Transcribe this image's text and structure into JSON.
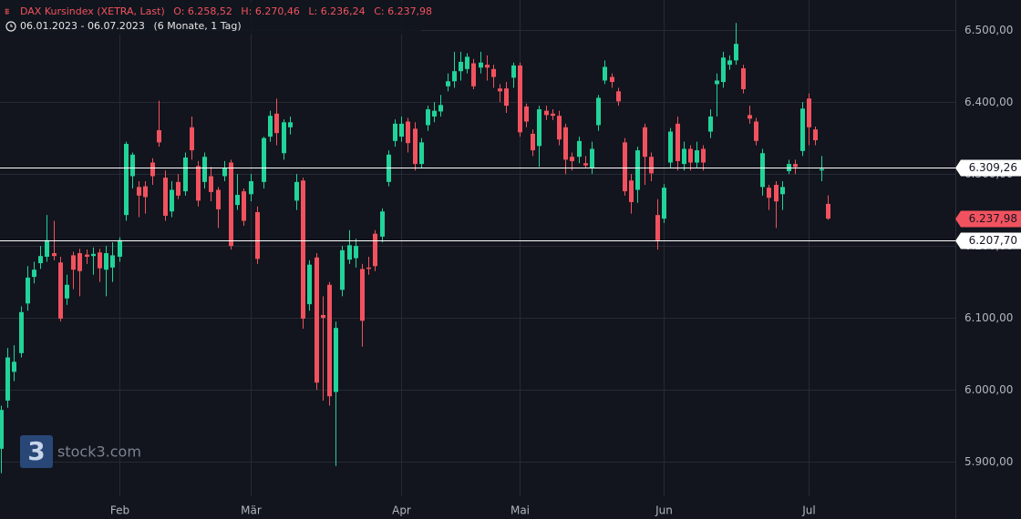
{
  "header": {
    "instrument": "DAX Kursindex (XETRA, Last)",
    "open": "O: 6.258,52",
    "high": "H: 6.270,46",
    "low": "L: 6.236,24",
    "close": "C: 6.237,98",
    "range": "06.01.2023 - 06.07.2023",
    "period": "(6 Monate, 1 Tag)"
  },
  "watermark": {
    "logo": "3",
    "text": "stock3.com"
  },
  "chart_data": {
    "type": "candlestick",
    "up_color": "#22d39a",
    "down_color": "#f2525f",
    "xlim": [
      -0.14,
      145.4
    ],
    "xticks": [
      {
        "value": 18,
        "label": "Feb"
      },
      {
        "value": 38,
        "label": "Mär"
      },
      {
        "value": 61,
        "label": "Apr"
      },
      {
        "value": 79,
        "label": "Mai"
      },
      {
        "value": 101,
        "label": "Jun"
      },
      {
        "value": 123,
        "label": "Jul"
      }
    ],
    "ylim": [
      5852,
      6542
    ],
    "yticks": [
      {
        "value": 5900,
        "label": "5.900,00"
      },
      {
        "value": 6000,
        "label": "6.000,00"
      },
      {
        "value": 6100,
        "label": "6.100,00"
      },
      {
        "value": 6200,
        "label": "6.200,00"
      },
      {
        "value": 6300,
        "label": "6.300,00"
      },
      {
        "value": 6400,
        "label": "6.400,00"
      },
      {
        "value": 6500,
        "label": "6.500,00"
      }
    ],
    "grid": true,
    "hlines": [
      {
        "value": 6309.26,
        "label": "6.309,26"
      },
      {
        "value": 6207.7,
        "label": "6.207,70"
      }
    ],
    "last_price": {
      "value": 6237.98,
      "label": "6.237,98"
    },
    "open": [
      5918,
      5985,
      6025,
      6051,
      6120,
      6157,
      6176,
      6185,
      6190,
      6177,
      6127,
      6187,
      6190,
      6188,
      6186,
      6191,
      6167,
      6170,
      6185,
      6243,
      6297,
      6282,
      6283,
      6316,
      6361,
      6295,
      6248,
      6289,
      6276,
      6365,
      6311,
      6289,
      6297,
      6278,
      6297,
      6316,
      6257,
      6276,
      6272,
      6247,
      6289,
      6352,
      6384,
      6329,
      6365,
      6263,
      6291,
      6119,
      6184,
      6104,
      6146,
      5997,
      6139,
      6181,
      6183,
      6168,
      6170,
      6217,
      6213,
      6289,
      6346,
      6352,
      6373,
      6363,
      6314,
      6368,
      6380,
      6387,
      6422,
      6429,
      6443,
      6446,
      6454,
      6448,
      6452,
      6446,
      6419,
      6419,
      6434,
      6451,
      6394,
      6356,
      6339,
      6388,
      6384,
      6381,
      6365,
      6324,
      6324,
      6315,
      6309,
      6368,
      6430,
      6435,
      6415,
      6344,
      6291,
      6278,
      6365,
      6324,
      6243,
      6238,
      6316,
      6370,
      6314,
      6335,
      6316,
      6335,
      6359,
      6425,
      6428,
      6452,
      6458,
      6447,
      6382,
      6373,
      6282,
      6281,
      6285,
      6272,
      6304,
      6314,
      6332,
      6405,
      6362,
      6305,
      6258.52
    ],
    "high": [
      5978,
      6058,
      6062,
      6116,
      6172,
      6178,
      6200,
      6243,
      6235,
      6185,
      6160,
      6192,
      6196,
      6195,
      6198,
      6196,
      6200,
      6205,
      6212,
      6345,
      6330,
      6290,
      6290,
      6322,
      6402,
      6305,
      6290,
      6300,
      6330,
      6380,
      6318,
      6330,
      6310,
      6282,
      6318,
      6320,
      6300,
      6280,
      6300,
      6255,
      6352,
      6388,
      6405,
      6376,
      6380,
      6300,
      6295,
      6180,
      6190,
      6130,
      6150,
      6095,
      6200,
      6222,
      6210,
      6175,
      6185,
      6222,
      6252,
      6333,
      6376,
      6380,
      6378,
      6372,
      6350,
      6395,
      6400,
      6410,
      6440,
      6470,
      6470,
      6468,
      6460,
      6470,
      6465,
      6452,
      6425,
      6428,
      6455,
      6455,
      6398,
      6362,
      6395,
      6395,
      6390,
      6388,
      6370,
      6330,
      6352,
      6325,
      6345,
      6410,
      6458,
      6440,
      6420,
      6350,
      6300,
      6338,
      6370,
      6330,
      6265,
      6286,
      6364,
      6380,
      6345,
      6340,
      6345,
      6340,
      6390,
      6440,
      6470,
      6465,
      6510,
      6452,
      6395,
      6378,
      6335,
      6285,
      6290,
      6290,
      6320,
      6320,
      6400,
      6412,
      6366,
      6325,
      6270.46
    ],
    "low": [
      5884,
      5975,
      6012,
      6045,
      6110,
      6148,
      6168,
      6178,
      6180,
      6095,
      6118,
      6140,
      6130,
      6175,
      6160,
      6150,
      6130,
      6150,
      6178,
      6235,
      6280,
      6240,
      6245,
      6285,
      6338,
      6235,
      6240,
      6265,
      6270,
      6320,
      6255,
      6280,
      6262,
      6225,
      6290,
      6195,
      6250,
      6228,
      6262,
      6175,
      6280,
      6345,
      6340,
      6320,
      6355,
      6250,
      6085,
      6110,
      6000,
      5985,
      5978,
      5894,
      6130,
      6175,
      6170,
      6060,
      6160,
      6165,
      6205,
      6283,
      6338,
      6345,
      6330,
      6305,
      6308,
      6360,
      6372,
      6380,
      6415,
      6420,
      6430,
      6440,
      6418,
      6440,
      6430,
      6420,
      6400,
      6385,
      6420,
      6352,
      6365,
      6325,
      6310,
      6375,
      6375,
      6340,
      6300,
      6305,
      6315,
      6308,
      6300,
      6360,
      6425,
      6420,
      6395,
      6270,
      6245,
      6260,
      6285,
      6290,
      6195,
      6232,
      6308,
      6305,
      6305,
      6305,
      6308,
      6305,
      6350,
      6380,
      6420,
      6445,
      6452,
      6412,
      6370,
      6340,
      6270,
      6250,
      6225,
      6250,
      6300,
      6300,
      6325,
      6340,
      6340,
      6290,
      6236.24
    ],
    "close": [
      5972,
      6045,
      6039,
      6108,
      6156,
      6167,
      6186,
      6208,
      6186,
      6099,
      6146,
      6167,
      6165,
      6185,
      6189,
      6169,
      6190,
      6187,
      6208,
      6342,
      6327,
      6270,
      6268,
      6297,
      6344,
      6242,
      6278,
      6270,
      6323,
      6333,
      6263,
      6324,
      6275,
      6251,
      6309,
      6200,
      6271,
      6235,
      6290,
      6182,
      6350,
      6381,
      6357,
      6372,
      6372,
      6289,
      6099,
      6174,
      6010,
      6100,
      5991,
      6086,
      6194,
      6201,
      6200,
      6096,
      6169,
      6172,
      6248,
      6327,
      6370,
      6370,
      6343,
      6314,
      6344,
      6390,
      6388,
      6396,
      6429,
      6443,
      6456,
      6463,
      6422,
      6455,
      6448,
      6435,
      6415,
      6395,
      6451,
      6358,
      6373,
      6333,
      6390,
      6382,
      6381,
      6348,
      6320,
      6318,
      6346,
      6312,
      6335,
      6406,
      6449,
      6428,
      6401,
      6276,
      6261,
      6333,
      6324,
      6301,
      6208,
      6281,
      6359,
      6318,
      6335,
      6316,
      6333,
      6316,
      6380,
      6430,
      6462,
      6458,
      6481,
      6418,
      6377,
      6346,
      6329,
      6267,
      6262,
      6282,
      6314,
      6310,
      6391,
      6365,
      6347,
      6307,
      6237.98
    ]
  }
}
